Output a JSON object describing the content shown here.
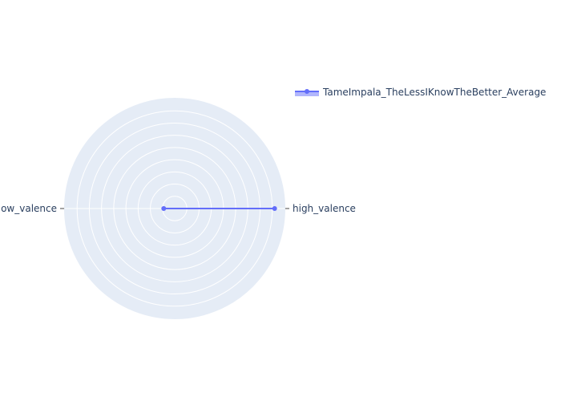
{
  "chart_data": {
    "type": "radar",
    "categories": [
      "high_valence",
      "low_valence"
    ],
    "series": [
      {
        "name": "TameImpala_TheLessIKnowTheBetter_Average",
        "values": [
          0.91,
          0.1
        ]
      }
    ],
    "r_range": [
      0,
      1
    ],
    "grid": true,
    "legend_position": "top-right",
    "colors": {
      "series": "#636efa",
      "polar_bg": "#e5ecf6",
      "grid": "#ffffff",
      "text": "#2a3f5f"
    }
  }
}
